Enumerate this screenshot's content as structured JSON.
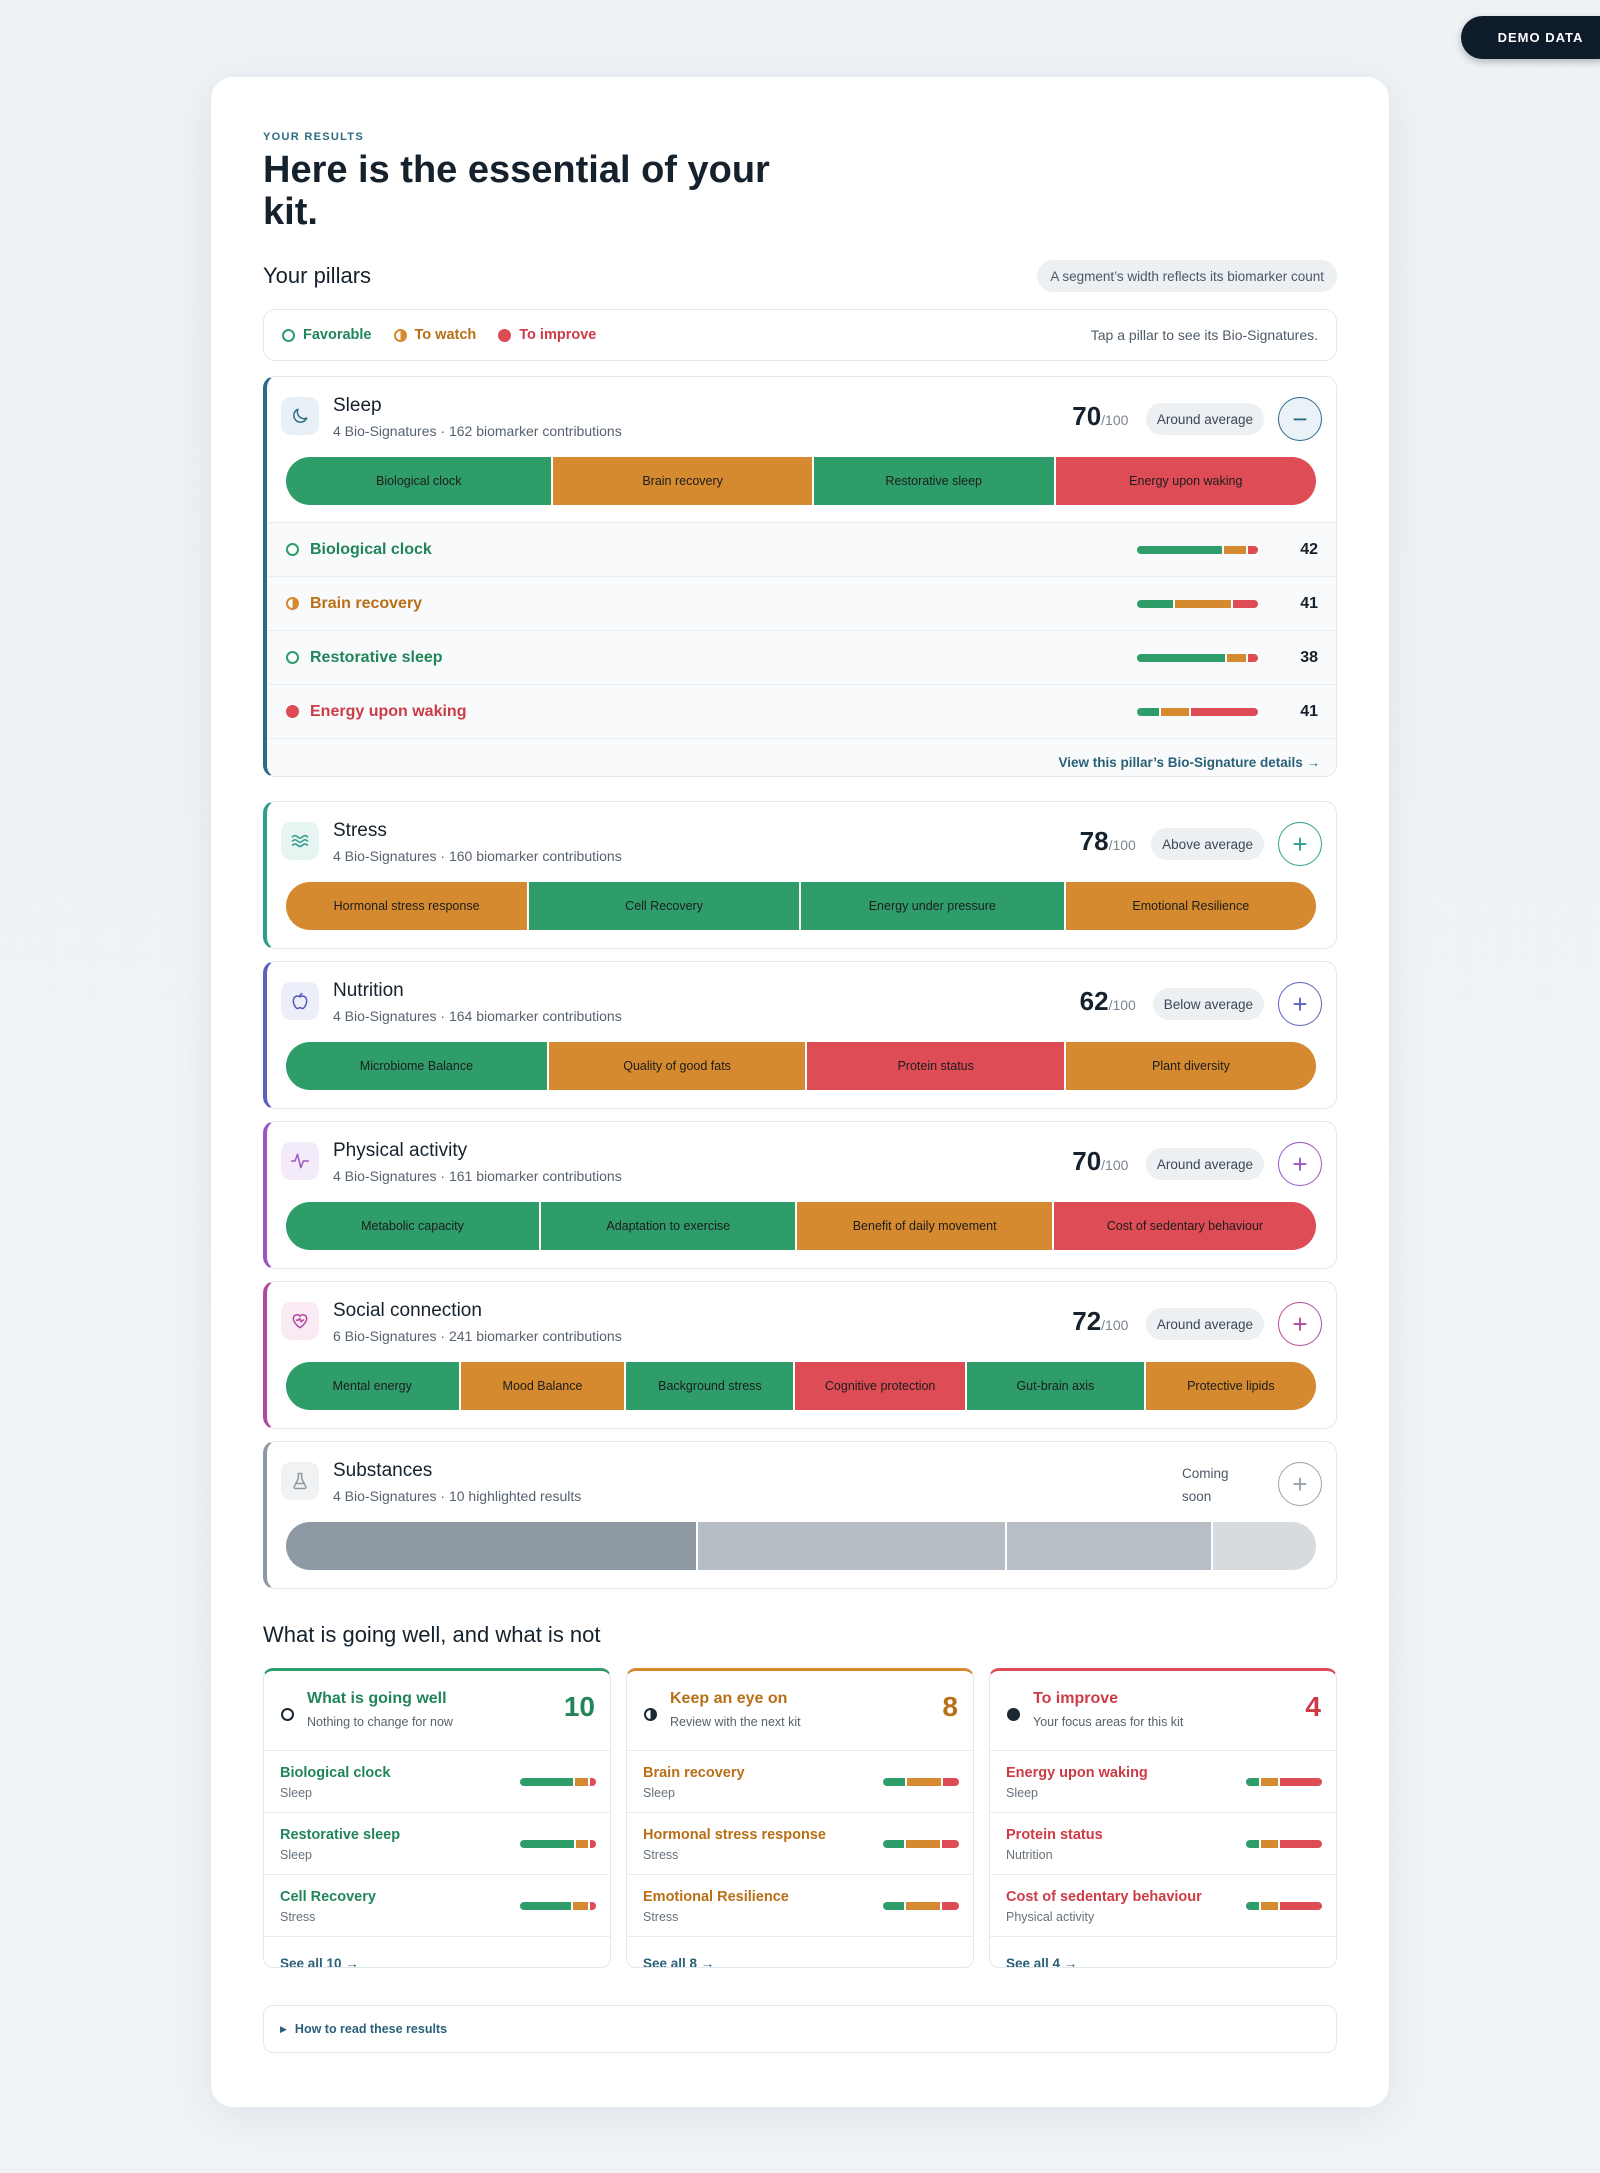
{
  "demo_badge": "DEMO DATA",
  "eyebrow": "YOUR RESULTS",
  "headline": "Here is the essential of your kit.",
  "pillars_title": "Your pillars",
  "width_note": "A segment’s width reflects its biomarker count",
  "legend": {
    "favorable": "Favorable",
    "to_watch": "To watch",
    "to_improve": "To improve",
    "hint": "Tap a pillar to see its Bio-Signatures."
  },
  "colors": {
    "favorable": "#2e9d6a",
    "to_watch": "#d58a2f",
    "to_improve": "#de4c55"
  },
  "pillars": [
    {
      "name": "Sleep",
      "sub": "4 Bio-Signatures · 162 biomarker contributions",
      "score": "70",
      "score_max": "/100",
      "badge": "Around average",
      "toggle": "−",
      "icon": "moon-icon",
      "segments": [
        {
          "label": "Biological clock",
          "status": "g",
          "share": 18.8
        },
        {
          "label": "Brain recovery",
          "status": "o",
          "share": 18.3
        },
        {
          "label": "Restorative sleep",
          "status": "g",
          "share": 17.0
        },
        {
          "label": "Energy upon waking",
          "status": "r",
          "share": 18.3
        }
      ],
      "signatures": [
        {
          "name": "Biological clock",
          "status": "fav",
          "value": "42",
          "mix": [
            72,
            20,
            8
          ]
        },
        {
          "name": "Brain recovery",
          "status": "watch",
          "value": "41",
          "mix": [
            31,
            48,
            21
          ]
        },
        {
          "name": "Restorative sleep",
          "status": "fav",
          "value": "38",
          "mix": [
            74,
            18,
            8
          ]
        },
        {
          "name": "Energy upon waking",
          "status": "imp",
          "value": "41",
          "mix": [
            20,
            25,
            55
          ]
        }
      ],
      "details_link": "View this pillar’s Bio-Signature details →"
    },
    {
      "name": "Stress",
      "sub": "4 Bio-Signatures · 160 biomarker contributions",
      "score": "78",
      "score_max": "/100",
      "badge": "Above average",
      "toggle": "+",
      "icon": "waves-icon",
      "segments": [
        {
          "label": "Hormonal stress response",
          "status": "o",
          "share": 17.0
        },
        {
          "label": "Cell Recovery",
          "status": "g",
          "share": 19.0
        },
        {
          "label": "Energy under pressure",
          "status": "g",
          "share": 18.5
        },
        {
          "label": "Emotional Resilience",
          "status": "o",
          "share": 17.5
        }
      ]
    },
    {
      "name": "Nutrition",
      "sub": "4 Bio-Signatures · 164 biomarker contributions",
      "score": "62",
      "score_max": "/100",
      "badge": "Below average",
      "toggle": "+",
      "icon": "apple-icon",
      "segments": [
        {
          "label": "Microbiome Balance",
          "status": "g",
          "share": 18.5
        },
        {
          "label": "Quality of good fats",
          "status": "o",
          "share": 18.2
        },
        {
          "label": "Protein status",
          "status": "r",
          "share": 18.2
        },
        {
          "label": "Plant diversity",
          "status": "o",
          "share": 17.6
        }
      ]
    },
    {
      "name": "Physical activity",
      "sub": "4 Bio-Signatures · 161 biomarker contributions",
      "score": "70",
      "score_max": "/100",
      "badge": "Around average",
      "toggle": "+",
      "icon": "pulse-icon",
      "segments": [
        {
          "label": "Metabolic capacity",
          "status": "g",
          "share": 17.9
        },
        {
          "label": "Adaptation to exercise",
          "status": "g",
          "share": 18.0
        },
        {
          "label": "Benefit of daily movement",
          "status": "o",
          "share": 18.0
        },
        {
          "label": "Cost of sedentary behaviour",
          "status": "r",
          "share": 18.4
        }
      ]
    },
    {
      "name": "Social connection",
      "sub": "6 Bio-Signatures · 241 biomarker contributions",
      "score": "72",
      "score_max": "/100",
      "badge": "Around average",
      "toggle": "+",
      "icon": "heart-icon",
      "segments": [
        {
          "label": "Mental energy",
          "status": "g",
          "share": 12.3
        },
        {
          "label": "Mood Balance",
          "status": "o",
          "share": 11.7
        },
        {
          "label": "Background stress",
          "status": "g",
          "share": 11.9
        },
        {
          "label": "Cognitive protection",
          "status": "r",
          "share": 12.1
        },
        {
          "label": "Gut-brain axis",
          "status": "g",
          "share": 12.6
        },
        {
          "label": "Protective lipids",
          "status": "o",
          "share": 12.0
        }
      ]
    },
    {
      "name": "Substances",
      "sub": "4 Bio-Signatures · 10 highlighted results",
      "coming": "Coming soon",
      "toggle": "+",
      "icon": "flask-icon",
      "segments": [
        {
          "label": "",
          "status": "s1",
          "share": 4
        },
        {
          "label": "",
          "status": "s2",
          "share": 3
        },
        {
          "label": "",
          "status": "s3",
          "share": 2
        },
        {
          "label": "",
          "status": "s4",
          "share": 1
        }
      ]
    }
  ],
  "going_title": "What is going well, and what is not",
  "columns": [
    {
      "title": "What is going well",
      "sub": "Nothing to change for now",
      "count": "10",
      "status": "fav",
      "rows": [
        {
          "name": "Biological clock",
          "pillar": "Sleep",
          "mix": [
            72,
            20,
            8
          ]
        },
        {
          "name": "Restorative sleep",
          "pillar": "Sleep",
          "mix": [
            74,
            18,
            8
          ]
        },
        {
          "name": "Cell Recovery",
          "pillar": "Stress",
          "mix": [
            70,
            22,
            8
          ]
        }
      ],
      "see_all": "See all 10 →"
    },
    {
      "title": "Keep an eye on",
      "sub": "Review with the next kit",
      "count": "8",
      "status": "watch",
      "rows": [
        {
          "name": "Brain recovery",
          "pillar": "Sleep",
          "mix": [
            31,
            48,
            21
          ]
        },
        {
          "name": "Hormonal stress response",
          "pillar": "Stress",
          "mix": [
            30,
            48,
            22
          ]
        },
        {
          "name": "Emotional Resilience",
          "pillar": "Stress",
          "mix": [
            30,
            48,
            22
          ]
        }
      ],
      "see_all": "See all 8 →"
    },
    {
      "title": "To improve",
      "sub": "Your focus areas for this kit",
      "count": "4",
      "status": "imp",
      "rows": [
        {
          "name": "Energy upon waking",
          "pillar": "Sleep",
          "mix": [
            20,
            25,
            55
          ]
        },
        {
          "name": "Protein status",
          "pillar": "Nutrition",
          "mix": [
            20,
            25,
            55
          ]
        },
        {
          "name": "Cost of sedentary behaviour",
          "pillar": "Physical activity",
          "mix": [
            20,
            25,
            55
          ]
        }
      ],
      "see_all": "See all 4 →"
    }
  ],
  "how_to_read": "How to read these results"
}
